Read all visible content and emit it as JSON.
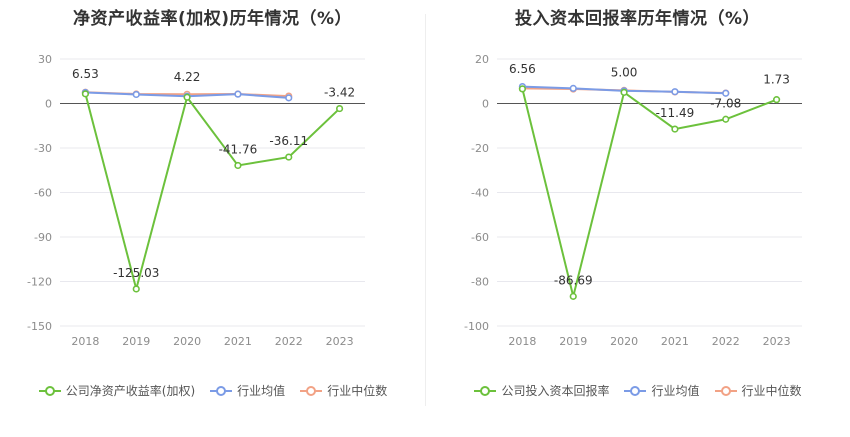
{
  "colors": {
    "company": "#6cc13c",
    "industry_avg": "#7b9be6",
    "industry_median": "#f2a285",
    "grid": "#e8e8ee",
    "axis_text": "#8c8c8c",
    "label_text": "#333333"
  },
  "chart_data": [
    {
      "type": "line",
      "title": "净资产收益率(加权)历年情况（%）",
      "categories": [
        "2018",
        "2019",
        "2020",
        "2021",
        "2022",
        "2023"
      ],
      "ylim": [
        -150,
        30
      ],
      "yticks": [
        30,
        0,
        -30,
        -60,
        -90,
        -120,
        -150
      ],
      "ytick_labels": [
        "30",
        "0",
        "-30",
        "-60",
        "-90",
        "-120",
        "-150"
      ],
      "series": [
        {
          "name": "公司净资产收益率(加权)",
          "key": "company",
          "values": [
            6.53,
            -125.03,
            4.22,
            -41.76,
            -36.11,
            -3.42
          ],
          "labels": [
            "6.53",
            "-125.03",
            "4.22",
            "-41.76",
            "-36.11",
            "-3.42"
          ]
        },
        {
          "name": "行业均值",
          "key": "industry_avg",
          "values": [
            7.4,
            6.1,
            4.9,
            6.3,
            3.8,
            null
          ]
        },
        {
          "name": "行业中位数",
          "key": "industry_median",
          "values": [
            7.6,
            6.4,
            6.2,
            6.4,
            5.0,
            null
          ]
        }
      ]
    },
    {
      "type": "line",
      "title": "投入资本回报率历年情况（%）",
      "categories": [
        "2018",
        "2019",
        "2020",
        "2021",
        "2022",
        "2023"
      ],
      "ylim": [
        -100,
        20
      ],
      "yticks": [
        20,
        0,
        -20,
        -40,
        -60,
        -80,
        -100
      ],
      "ytick_labels": [
        "20",
        "0",
        "-20",
        "-40",
        "-60",
        "-80",
        "-100"
      ],
      "series": [
        {
          "name": "公司投入资本回报率",
          "key": "company",
          "values": [
            6.56,
            -86.69,
            5.0,
            -11.49,
            -7.08,
            1.73
          ],
          "labels": [
            "6.56",
            "-86.69",
            "5.00",
            "-11.49",
            "-7.08",
            "1.73"
          ]
        },
        {
          "name": "行业均值",
          "key": "industry_avg",
          "values": [
            7.6,
            6.8,
            5.7,
            5.3,
            4.6,
            null
          ]
        },
        {
          "name": "行业中位数",
          "key": "industry_median",
          "values": [
            6.8,
            6.5,
            5.9,
            5.2,
            4.7,
            null
          ]
        }
      ]
    }
  ]
}
